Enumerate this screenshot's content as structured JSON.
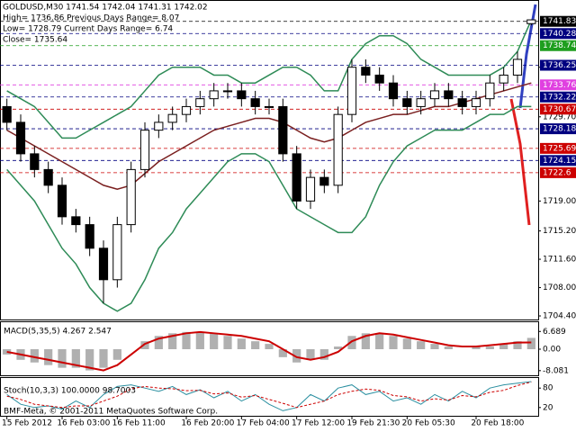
{
  "chart_data": [
    {
      "type": "candlestick",
      "title": "GOLDUSD,M30  1741.54 1742.04 1741.31 1742.02",
      "annotations": [
        "High= 1736.86    Previous Days Range= 8.07",
        "Low= 1728.79    Current Days Range= 6.74",
        "Close= 1735.64"
      ],
      "footer": "BMF-Meta, © 2001-2011 MetaQuotes Software Corp.",
      "categories": [
        "15 Feb 2012",
        null,
        null,
        null,
        "16 Feb 03:00",
        null,
        null,
        null,
        "16 Feb 11:00",
        null,
        null,
        null,
        null,
        "16 Feb 20:00",
        null,
        null,
        null,
        "17 Feb 04:00",
        null,
        null,
        null,
        "17 Feb 12:00",
        null,
        null,
        null,
        "19 Feb 21:30",
        null,
        null,
        null,
        "20 Feb 05:30",
        null,
        null,
        null,
        null,
        "20 Feb 18:00",
        null,
        null,
        null,
        null
      ],
      "open": [
        1731,
        1729,
        1725,
        1723,
        1721,
        1717,
        1716,
        1713,
        1709,
        1716,
        1723,
        1728,
        1729,
        1730,
        1731,
        1732,
        1733,
        1733,
        1732,
        1731,
        1731,
        1725,
        1719,
        1722,
        1721,
        1730,
        1736,
        1735,
        1734,
        1732,
        1731,
        1732,
        1733,
        1732,
        1731,
        1732,
        1734,
        1735,
        1741.54
      ],
      "high": [
        1732,
        1730,
        1726,
        1724,
        1722,
        1718,
        1717,
        1714,
        1717,
        1724,
        1729,
        1730,
        1731,
        1732,
        1733,
        1734,
        1734,
        1734,
        1733,
        1732,
        1732,
        1726,
        1723,
        1723,
        1731,
        1737,
        1737,
        1736,
        1735,
        1733,
        1733,
        1734,
        1734,
        1733,
        1733,
        1735,
        1736,
        1738,
        1742.04
      ],
      "low": [
        1728,
        1724,
        1722,
        1720,
        1716,
        1715,
        1712,
        1706,
        1708,
        1715,
        1722,
        1727,
        1728,
        1729,
        1730,
        1731,
        1732,
        1731,
        1730,
        1730,
        1724,
        1718,
        1718,
        1720,
        1720,
        1729,
        1734,
        1733,
        1731,
        1730,
        1730,
        1731,
        1731,
        1730,
        1730,
        1731,
        1733,
        1734,
        1741.31
      ],
      "close": [
        1729,
        1725,
        1723,
        1721,
        1717,
        1716,
        1713,
        1709,
        1716,
        1723,
        1728,
        1729,
        1730,
        1731,
        1732,
        1733,
        1733,
        1732,
        1731,
        1731,
        1725,
        1719,
        1722,
        1721,
        1730,
        1736,
        1735,
        1734,
        1732,
        1731,
        1732,
        1733,
        1732,
        1731,
        1732,
        1734,
        1735,
        1737,
        1742.02
      ],
      "up_color": "#ffffff",
      "down_color": "#000000",
      "overlays": [
        {
          "color": "#7a1f1f",
          "values": [
            1728,
            1727,
            1726,
            1725,
            1724,
            1723,
            1722,
            1721,
            1720.5,
            1721,
            1722.5,
            1724,
            1725,
            1726,
            1727,
            1728,
            1728.5,
            1729,
            1729.5,
            1729.5,
            1729,
            1728,
            1727,
            1726.5,
            1727,
            1728,
            1729,
            1729.5,
            1730,
            1730,
            1730.5,
            1731,
            1731,
            1731.5,
            1732,
            1732.5,
            1733,
            1733.5,
            1734
          ]
        },
        {
          "color": "#2e8b57",
          "values": [
            1733,
            1732,
            1731,
            1729,
            1727,
            1727,
            1728,
            1729,
            1730,
            1731,
            1733,
            1735,
            1736,
            1736,
            1736,
            1735,
            1735,
            1734,
            1734,
            1735,
            1736,
            1736,
            1735,
            1733,
            1733,
            1737,
            1739,
            1740,
            1740,
            1739,
            1737,
            1736,
            1735,
            1735,
            1735,
            1735,
            1736,
            1738,
            1742
          ]
        },
        {
          "color": "#2e8b57",
          "values": [
            1723,
            1721,
            1719,
            1716,
            1713,
            1711,
            1708,
            1706,
            1705,
            1706,
            1709,
            1713,
            1715,
            1718,
            1720,
            1722,
            1724,
            1725,
            1725,
            1724,
            1721,
            1718,
            1717,
            1716,
            1715,
            1715,
            1717,
            1721,
            1724,
            1726,
            1727,
            1728,
            1728,
            1728,
            1729,
            1730,
            1730,
            1731,
            1731
          ]
        }
      ],
      "levels": [
        {
          "value": 1741.83,
          "color": "#000000"
        },
        {
          "value": 1740.28,
          "color": "#000080"
        },
        {
          "value": 1738.74,
          "color": "#1e9e1e"
        },
        {
          "value": 1736.25,
          "color": "#000080"
        },
        {
          "value": 1733.76,
          "color": "#e040e0"
        },
        {
          "value": 1732.22,
          "color": "#000080"
        },
        {
          "value": 1730.67,
          "color": "#cc0000"
        },
        {
          "value": 1728.18,
          "color": "#000080"
        },
        {
          "value": 1725.69,
          "color": "#cc0000"
        },
        {
          "value": 1724.15,
          "color": "#000080"
        },
        {
          "value": 1722.6,
          "color": "#cc0000"
        }
      ],
      "ylim": [
        1704.06,
        1744.2
      ],
      "yticks": [
        {
          "value": 1704.4,
          "label": "1704.40"
        },
        {
          "value": 1708,
          "label": "1708.00"
        },
        {
          "value": 1711.6,
          "label": "1711.60"
        },
        {
          "value": 1715.2,
          "label": "1715.20"
        },
        {
          "value": 1719,
          "label": "1719.00"
        },
        {
          "value": 1729.7,
          "label": "1729.70"
        },
        {
          "value": 1736,
          "label": "1736.00"
        }
      ]
    },
    {
      "type": "bar",
      "title": "MACD(5,35,5) 4.267 2.547",
      "color": "#b0b0b0",
      "values": [
        -2,
        -4,
        -5,
        -6,
        -7,
        -7,
        -8,
        -7,
        -4,
        0,
        3,
        5,
        6,
        6.5,
        6.5,
        6,
        5,
        4,
        3,
        2,
        -3,
        -5,
        -4,
        -4,
        1,
        5,
        6,
        6,
        5,
        4,
        3,
        2,
        1,
        0,
        1,
        1,
        2,
        3,
        4.267
      ],
      "signal": {
        "color": "#cc0000",
        "values": [
          -1,
          -2,
          -3,
          -4,
          -5,
          -6,
          -7,
          -8,
          -6,
          -2,
          2,
          4,
          5,
          6,
          6.5,
          6,
          5.5,
          5,
          4,
          3,
          0,
          -3,
          -4,
          -3,
          -1,
          3,
          5,
          6,
          5.5,
          4.5,
          3.5,
          2.5,
          1.5,
          1,
          1,
          1.5,
          2,
          2.5,
          2.547
        ]
      },
      "ylim": [
        -9.5,
        9.5
      ],
      "yticks": [
        6.689,
        {
          "value": 0,
          "label": "0.00"
        },
        -8.081
      ]
    },
    {
      "type": "line",
      "title": "Stoch(10,3,3) 100.0000 98.7003",
      "lines": [
        {
          "color": "#2a8fa0",
          "values": [
            60,
            30,
            20,
            25,
            15,
            40,
            20,
            60,
            85,
            90,
            80,
            70,
            85,
            60,
            75,
            50,
            70,
            40,
            60,
            30,
            10,
            20,
            60,
            40,
            80,
            90,
            60,
            70,
            40,
            50,
            30,
            60,
            40,
            70,
            50,
            80,
            90,
            95,
            100
          ]
        },
        {
          "color": "#cc0000",
          "values": [
            55,
            45,
            30,
            25,
            20,
            25,
            25,
            40,
            55,
            78,
            85,
            80,
            78,
            72,
            73,
            62,
            65,
            52,
            57,
            45,
            33,
            20,
            30,
            40,
            60,
            70,
            77,
            73,
            57,
            53,
            40,
            47,
            43,
            57,
            53,
            67,
            73,
            88,
            98.7003
          ]
        }
      ],
      "ylim": [
        0,
        100
      ],
      "yticks": [
        80,
        20
      ]
    }
  ]
}
